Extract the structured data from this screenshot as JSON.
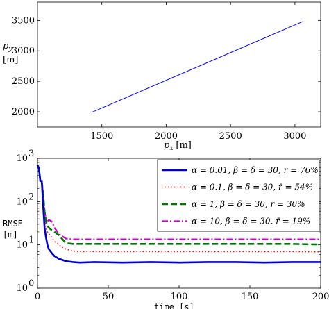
{
  "chart_data": [
    {
      "type": "line",
      "xlabel_var": "p",
      "xlabel_sub": "x",
      "xlabel_unit": "[m]",
      "ylabel_var": "p",
      "ylabel_sub": "y",
      "ylabel_unit": "[m]",
      "xlim": [
        1000,
        3200
      ],
      "ylim": [
        1750,
        3800
      ],
      "xticks": [
        1500,
        2000,
        2500,
        3000
      ],
      "yticks": [
        2000,
        2500,
        3000,
        3500
      ],
      "xtick_labels": [
        "1500",
        "2000",
        "2500",
        "3000"
      ],
      "ytick_labels": [
        "2000",
        "2500",
        "3000",
        "3500"
      ],
      "series": [
        {
          "x": [
            1420,
            3060
          ],
          "y": [
            1990,
            3480
          ],
          "color": "#0000ff"
        }
      ]
    },
    {
      "type": "line",
      "xlabel": "time [s]",
      "ylabel_top": "RMSE",
      "ylabel_unit": "[m]",
      "yscale": "log",
      "xlim": [
        0,
        200
      ],
      "ylim": [
        1,
        1000
      ],
      "xticks": [
        0,
        50,
        100,
        150,
        200
      ],
      "xtick_labels": [
        "0",
        "50",
        "100",
        "150",
        "200"
      ],
      "yticks": [
        1,
        10,
        100,
        1000
      ],
      "ytick_labels": [
        {
          "base": "10",
          "exp": "0"
        },
        {
          "base": "10",
          "exp": "1"
        },
        {
          "base": "10",
          "exp": "2"
        },
        {
          "base": "10",
          "exp": "3"
        }
      ],
      "legend_position": "top-right",
      "series": [
        {
          "name": "α = 0.01, β = δ = 30, r̄ = 76%",
          "color": "#0000cc",
          "style": "solid",
          "x": [
            0,
            1,
            2,
            3,
            4,
            5,
            6,
            7,
            8,
            10,
            12,
            15,
            20,
            25,
            30,
            40,
            60,
            80,
            100,
            120,
            140,
            160,
            180,
            200
          ],
          "y": [
            700,
            600,
            300,
            300,
            80,
            25,
            15,
            10,
            8,
            6.5,
            5.5,
            4.8,
            4.2,
            4.0,
            3.9,
            4.0,
            3.9,
            4.0,
            3.9,
            4.0,
            4.0,
            3.9,
            4.0,
            4.0
          ]
        },
        {
          "name": "α = 0.1, β = δ = 30, r̄ = 54%",
          "color": "#ff0000",
          "style": "dotted",
          "x": [
            0,
            1,
            2,
            3,
            4,
            5,
            6,
            7,
            8,
            10,
            12,
            15,
            20,
            25,
            30,
            40,
            60,
            80,
            100,
            120,
            140,
            160,
            180,
            200
          ],
          "y": [
            700,
            600,
            300,
            300,
            120,
            40,
            25,
            20,
            18,
            15,
            12,
            10,
            8,
            7.2,
            7.0,
            7.0,
            7.0,
            7.0,
            7.0,
            7.0,
            7.0,
            7.0,
            7.0,
            6.9
          ]
        },
        {
          "name": "α = 1, β = δ = 30, r̄ = 30%",
          "color": "#007700",
          "style": "dashed",
          "x": [
            0,
            1,
            2,
            3,
            4,
            5,
            6,
            7,
            8,
            10,
            12,
            15,
            20,
            25,
            30,
            40,
            60,
            80,
            100,
            120,
            140,
            160,
            180,
            200
          ],
          "y": [
            700,
            600,
            300,
            300,
            150,
            60,
            35,
            28,
            25,
            22,
            20,
            17,
            11,
            10.5,
            10.5,
            10.5,
            10.5,
            10.5,
            10.5,
            10.5,
            10.5,
            10.5,
            10.5,
            10.2
          ]
        },
        {
          "name": "α = 10, β = δ = 30, r̄ = 19%",
          "color": "#cc00cc",
          "style": "dashdot",
          "x": [
            0,
            1,
            2,
            3,
            4,
            5,
            6,
            7,
            8,
            10,
            12,
            15,
            20,
            25,
            30,
            40,
            60,
            80,
            100,
            120,
            140,
            160,
            180,
            200
          ],
          "y": [
            700,
            600,
            300,
            300,
            150,
            60,
            40,
            35,
            38,
            35,
            25,
            18,
            14,
            13.5,
            13.5,
            13.5,
            13.5,
            13.5,
            13.5,
            13.5,
            13.5,
            13.5,
            13.5,
            13.5
          ]
        }
      ]
    }
  ]
}
